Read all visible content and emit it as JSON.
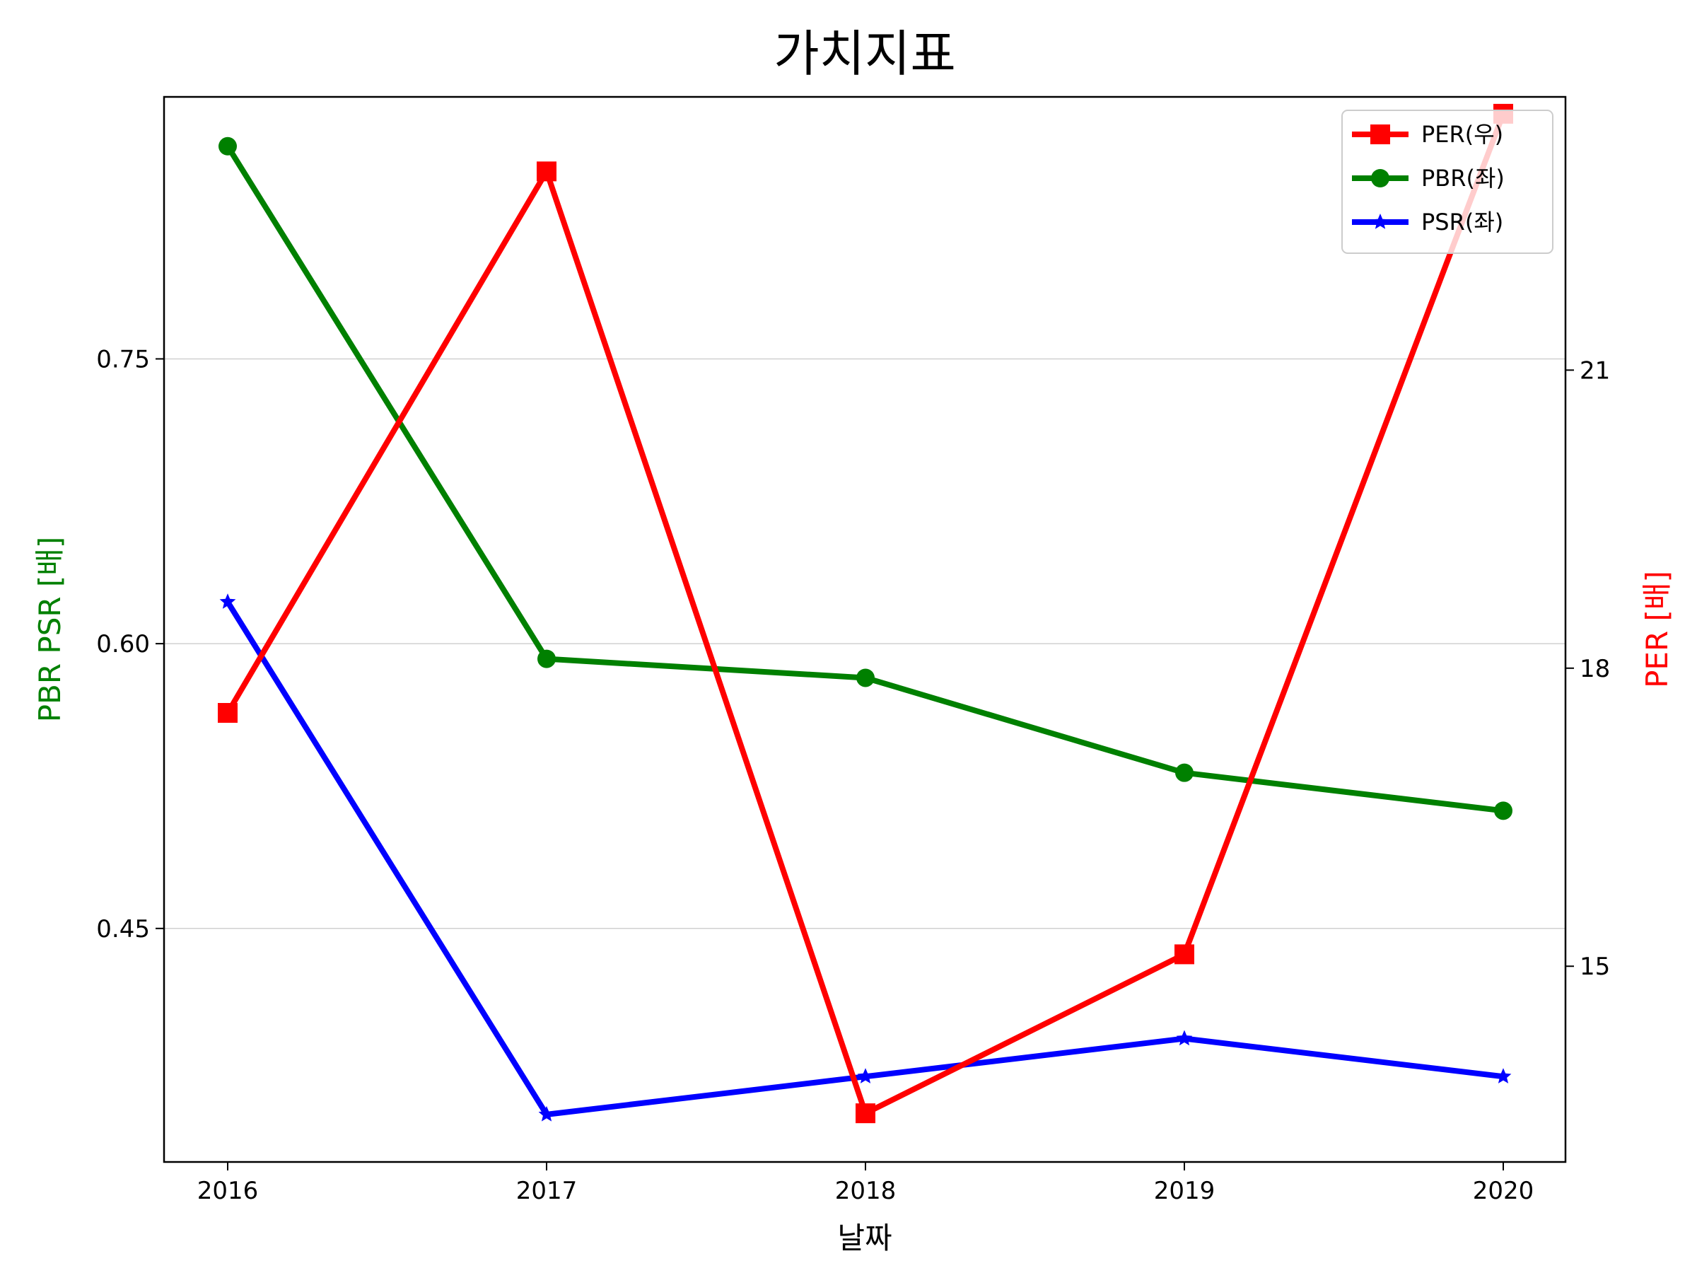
{
  "chart_data": {
    "type": "line",
    "title": "가치지표",
    "xlabel": "날짜",
    "ylabel_left": "PBR PSR [배]",
    "ylabel_right": "PER [배]",
    "categories": [
      "2016",
      "2017",
      "2018",
      "2019",
      "2020"
    ],
    "y_left_ticks": [
      "0.45",
      "0.60",
      "0.75"
    ],
    "y_right_ticks": [
      "15",
      "18",
      "21"
    ],
    "y_left_range": [
      0.327,
      0.888
    ],
    "y_right_range": [
      13.03,
      23.75
    ],
    "grid": "horizontal (left axis)",
    "legend_position": "top-right",
    "series": [
      {
        "name": "PER(우)",
        "axis": "right",
        "marker": "square",
        "color": "#ff0000",
        "values": [
          17.55,
          23.0,
          13.52,
          15.12,
          23.58
        ]
      },
      {
        "name": "PBR(좌)",
        "axis": "left",
        "marker": "circle",
        "color": "#008000",
        "values": [
          0.862,
          0.592,
          0.582,
          0.532,
          0.512
        ]
      },
      {
        "name": "PSR(좌)",
        "axis": "left",
        "marker": "star",
        "color": "#0000ff",
        "values": [
          0.622,
          0.352,
          0.372,
          0.392,
          0.372
        ]
      }
    ]
  }
}
